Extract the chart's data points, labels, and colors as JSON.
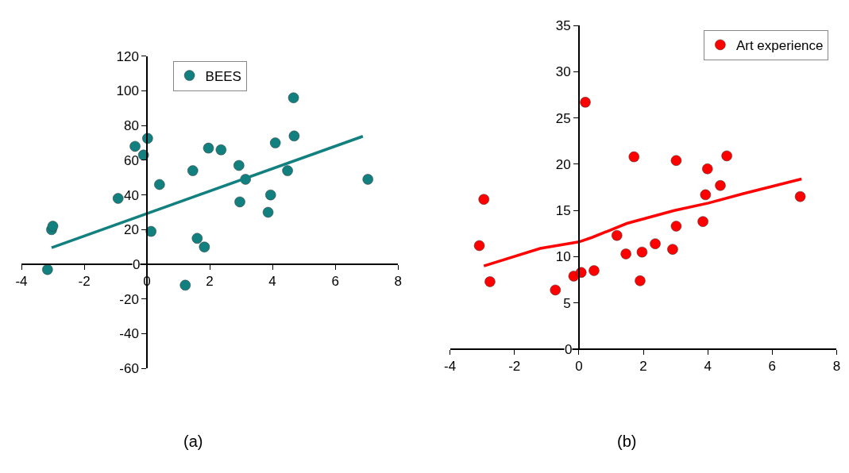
{
  "chart_data": [
    {
      "type": "scatter",
      "xlim": [
        -4,
        8
      ],
      "ylim": [
        -60,
        120
      ],
      "xticks": [
        -4,
        -2,
        0,
        2,
        4,
        6,
        8
      ],
      "yticks": [
        -60,
        -40,
        -20,
        0,
        20,
        40,
        60,
        80,
        100,
        120
      ],
      "grid": false,
      "legend": "top",
      "annotations": [
        "(a)"
      ],
      "series": [
        {
          "name": "BEES",
          "color": "#138080",
          "marker": "circle",
          "x": [
            -3.17,
            -3.04,
            -3.0,
            -0.92,
            -0.38,
            -0.11,
            0.02,
            0.13,
            0.4,
            1.22,
            1.46,
            1.6,
            1.83,
            1.96,
            2.36,
            2.93,
            2.96,
            3.14,
            3.86,
            3.94,
            4.09,
            4.48,
            4.67,
            4.69,
            7.04
          ],
          "values": [
            -3,
            20,
            22,
            38,
            68,
            63,
            72.6,
            19,
            46,
            -12,
            54,
            15,
            10,
            67,
            66,
            57,
            36,
            49,
            30,
            40,
            70,
            54,
            96,
            74,
            49
          ]
        },
        {
          "type": "line",
          "color": "#138080",
          "x": [
            -3.04,
            6.88
          ],
          "values": [
            9.6,
            73.8
          ]
        }
      ]
    },
    {
      "type": "scatter",
      "xlim": [
        -4,
        8
      ],
      "ylim": [
        0,
        35
      ],
      "xticks": [
        -4,
        -2,
        0,
        2,
        4,
        6,
        8
      ],
      "yticks": [
        0,
        5,
        10,
        15,
        20,
        25,
        30,
        35
      ],
      "grid": false,
      "legend": "top right",
      "annotations": [
        "(b)"
      ],
      "series": [
        {
          "name": "Art experience",
          "color": "#ff0000",
          "marker": "circle",
          "x": [
            -3.09,
            -2.95,
            -2.76,
            -0.73,
            -0.16,
            0.07,
            0.2,
            0.47,
            1.18,
            1.46,
            1.71,
            1.9,
            1.96,
            2.37,
            2.91,
            3.02,
            3.02,
            3.85,
            3.93,
            3.99,
            4.39,
            4.59,
            6.87
          ],
          "values": [
            11.2,
            16.2,
            7.3,
            6.4,
            7.9,
            8.3,
            26.7,
            8.5,
            12.3,
            10.3,
            20.8,
            7.4,
            10.5,
            11.4,
            10.8,
            20.4,
            13.3,
            13.8,
            16.7,
            19.5,
            17.7,
            20.9,
            16.5
          ]
        },
        {
          "type": "line",
          "color": "#ff0000",
          "x": [
            -2.95,
            -1.2,
            0,
            0.42,
            1.49,
            2.96,
            4.02,
            5.08,
            6.91
          ],
          "values": [
            9.0,
            10.9,
            11.6,
            12.1,
            13.6,
            15.0,
            15.8,
            16.8,
            18.4
          ]
        }
      ]
    }
  ]
}
